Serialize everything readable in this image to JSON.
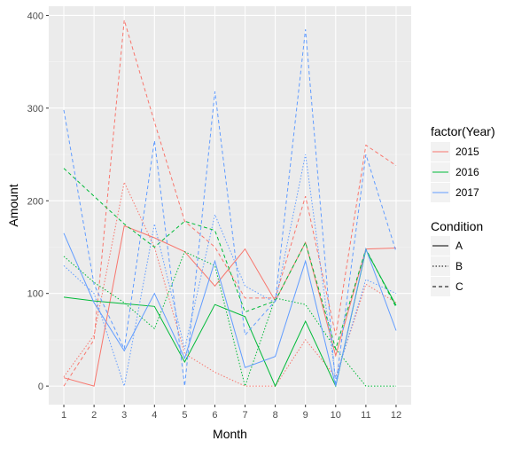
{
  "chart_data": {
    "type": "line",
    "xlabel": "Month",
    "ylabel": "Amount",
    "x": [
      1,
      2,
      3,
      4,
      5,
      6,
      7,
      8,
      9,
      10,
      11,
      12
    ],
    "xlim": [
      0.5,
      12.5
    ],
    "ylim": [
      -20,
      410
    ],
    "yticks": [
      0,
      100,
      200,
      300,
      400
    ],
    "grid": true,
    "legend_placement": "right",
    "color_legend": {
      "title": "factor(Year)",
      "entries": [
        {
          "label": "2015",
          "color": "#F8766D"
        },
        {
          "label": "2016",
          "color": "#00BA38"
        },
        {
          "label": "2017",
          "color": "#619CFF"
        }
      ]
    },
    "linetype_legend": {
      "title": "Condition",
      "entries": [
        {
          "label": "A",
          "dash": "solid"
        },
        {
          "label": "B",
          "dash": "dotted"
        },
        {
          "label": "C",
          "dash": "dashed"
        }
      ]
    },
    "series": [
      {
        "year": "2015",
        "condition": "A",
        "values": [
          9,
          0,
          173,
          160,
          145,
          108,
          148,
          92,
          155,
          33,
          148,
          149
        ]
      },
      {
        "year": "2015",
        "condition": "B",
        "values": [
          10,
          55,
          220,
          150,
          35,
          15,
          0,
          0,
          50,
          10,
          110,
          90
        ]
      },
      {
        "year": "2015",
        "condition": "C",
        "values": [
          0,
          50,
          395,
          285,
          178,
          150,
          95,
          95,
          205,
          55,
          260,
          238
        ]
      },
      {
        "year": "2016",
        "condition": "A",
        "values": [
          96,
          92,
          89,
          86,
          26,
          88,
          75,
          0,
          70,
          0,
          147,
          87
        ]
      },
      {
        "year": "2016",
        "condition": "B",
        "values": [
          140,
          112,
          90,
          62,
          145,
          130,
          0,
          95,
          88,
          40,
          0,
          0
        ]
      },
      {
        "year": "2016",
        "condition": "C",
        "values": [
          235,
          205,
          175,
          150,
          178,
          168,
          80,
          92,
          155,
          40,
          148,
          85
        ]
      },
      {
        "year": "2017",
        "condition": "A",
        "values": [
          165,
          90,
          38,
          100,
          30,
          135,
          20,
          32,
          135,
          0,
          148,
          60
        ]
      },
      {
        "year": "2017",
        "condition": "B",
        "values": [
          130,
          100,
          0,
          175,
          40,
          185,
          108,
          90,
          250,
          8,
          115,
          100
        ]
      },
      {
        "year": "2017",
        "condition": "C",
        "values": [
          298,
          110,
          40,
          265,
          0,
          318,
          55,
          92,
          385,
          0,
          250,
          145
        ]
      }
    ]
  }
}
